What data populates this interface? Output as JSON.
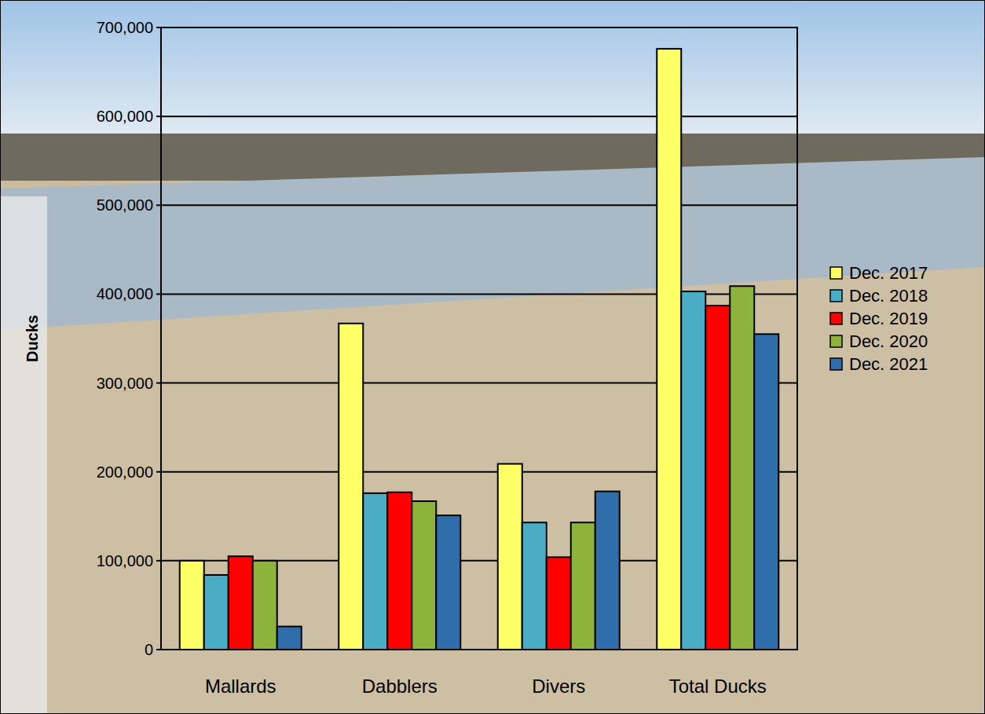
{
  "chart_data": {
    "type": "bar",
    "categories": [
      "Mallards",
      "Dabblers",
      "Divers",
      "Total Ducks"
    ],
    "series": [
      {
        "name": "Dec. 2017",
        "color": "#ffff66",
        "values": [
          100000,
          367000,
          209000,
          676000
        ]
      },
      {
        "name": "Dec. 2018",
        "color": "#4bacc6",
        "values": [
          84000,
          176000,
          143000,
          403000
        ]
      },
      {
        "name": "Dec. 2019",
        "color": "#ff0000",
        "values": [
          105000,
          177000,
          104000,
          387000
        ]
      },
      {
        "name": "Dec. 2020",
        "color": "#8db33c",
        "values": [
          100000,
          167000,
          143000,
          409000
        ]
      },
      {
        "name": "Dec. 2021",
        "color": "#2f6eaa",
        "values": [
          26000,
          151000,
          178000,
          355000
        ]
      }
    ],
    "y_label": "Ducks",
    "ylim": [
      0,
      700000
    ],
    "yticks": [
      0,
      {
        "value": 100000,
        "label": "100,000"
      },
      {
        "value": 200000,
        "label": "200,000"
      },
      {
        "value": 300000,
        "label": "300,000"
      },
      {
        "value": 400000,
        "label": "400,000"
      },
      {
        "value": 500000,
        "label": "500,000"
      },
      {
        "value": 600000,
        "label": "600,000"
      },
      {
        "value": 700000,
        "label": "700,000"
      }
    ],
    "grid": true,
    "legend": "right"
  }
}
